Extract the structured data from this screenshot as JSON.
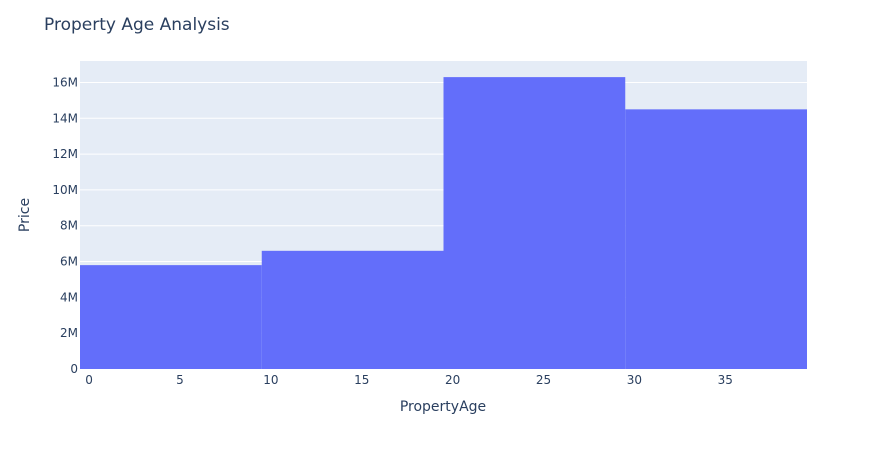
{
  "chart_data": {
    "type": "bar",
    "title": "Property Age Analysis",
    "xlabel": "PropertyAge",
    "ylabel": "Price",
    "bins": [
      {
        "x0": -0.5,
        "x1": 9.5,
        "value": 5800000
      },
      {
        "x0": 9.5,
        "x1": 19.5,
        "value": 6600000
      },
      {
        "x0": 19.5,
        "x1": 29.5,
        "value": 16300000
      },
      {
        "x0": 29.5,
        "x1": 39.5,
        "value": 14500000
      }
    ],
    "xlim": [
      -0.5,
      39.5
    ],
    "ylim": [
      0,
      17200000
    ],
    "xticks": [
      0,
      5,
      10,
      15,
      20,
      25,
      30,
      35
    ],
    "xtick_labels": [
      "0",
      "5",
      "10",
      "15",
      "20",
      "25",
      "30",
      "35"
    ],
    "yticks": [
      0,
      2000000,
      4000000,
      6000000,
      8000000,
      10000000,
      12000000,
      14000000,
      16000000
    ],
    "ytick_labels": [
      "0",
      "2M",
      "4M",
      "6M",
      "8M",
      "10M",
      "12M",
      "14M",
      "16M"
    ],
    "grid": true,
    "colors": {
      "bar": "#636efa",
      "plot_bg": "#e5ecf6",
      "text": "#2a3f5f"
    }
  }
}
